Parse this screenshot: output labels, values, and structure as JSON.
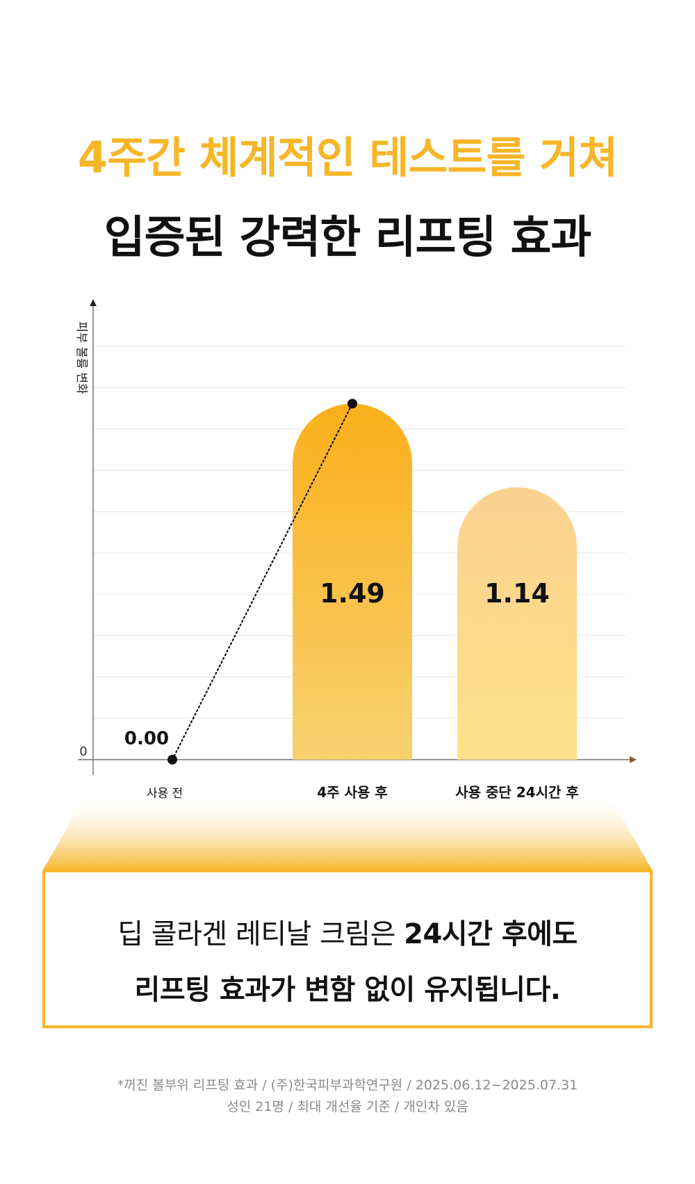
{
  "headline": {
    "line1": "4주간 체계적인 테스트를 거쳐",
    "line2": "입증된 강력한 리프팅 효과"
  },
  "colors": {
    "accent": "#f7b628",
    "bar1_top": "#fbb01b",
    "bar1_bottom": "#f8d170",
    "bar2_top": "#fbd290",
    "bar2_bottom": "#fde08a",
    "axis_arrow": "#8a5a2b",
    "text_dark": "#111111",
    "text_gray": "#8a8a8a"
  },
  "chart_data": {
    "type": "bar",
    "ylabel": "피부 볼륨 변화",
    "categories": [
      "사용 전",
      "4주 사용 후",
      "사용 중단 24시간 후"
    ],
    "values": [
      0.0,
      1.49,
      1.14
    ],
    "value_labels": [
      "0.00",
      "1.49",
      "1.14"
    ],
    "y_zero_label": "0",
    "ylim": [
      0,
      1.84
    ],
    "grid": true,
    "trend_line": {
      "from_index": 0,
      "to_index": 1,
      "style": "dotted"
    }
  },
  "callout": {
    "line1_normal": "딥 콜라겐 레티날 크림은 ",
    "line1_bold": "24시간 후에도",
    "line2": "리프팅 효과가 변함 없이 유지됩니다."
  },
  "footnote": {
    "line1": "*꺼진 볼부위 리프팅 효과  / (주)한국피부과학연구원 / 2025.06.12~2025.07.31",
    "line2": "성인 21명 / 최대 개선율 기준 / 개인차 있음"
  }
}
